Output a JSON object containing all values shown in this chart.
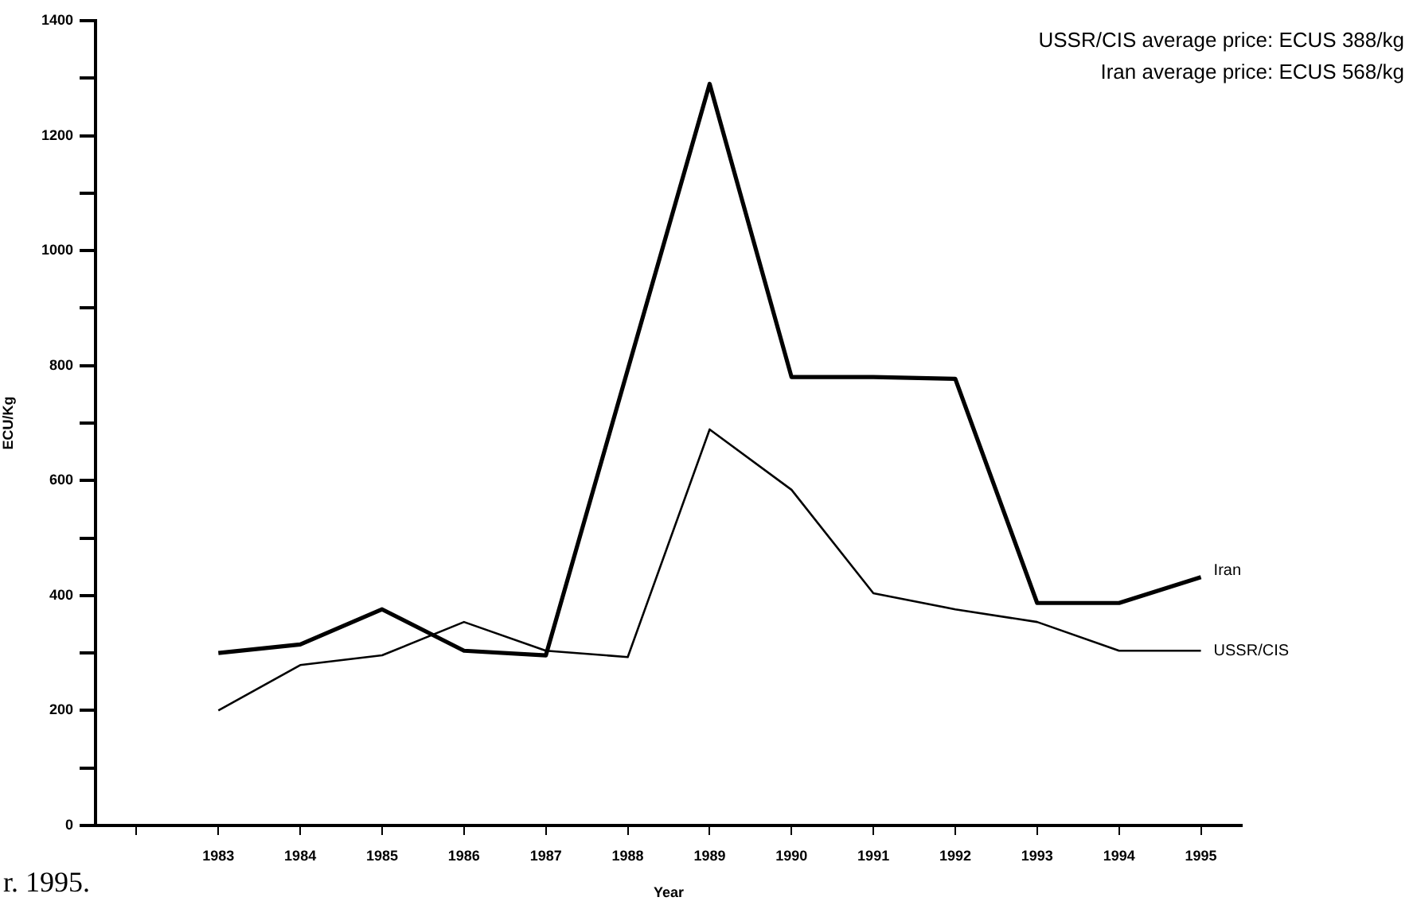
{
  "chart_data": {
    "type": "line",
    "xlabel": "Year",
    "ylabel": "ECU/Kg",
    "annotations": [
      "USSR/CIS average price: ECUS 388/kg",
      "Iran average price: ECUS 568/kg",
      "r. 1995."
    ],
    "series": [
      {
        "name": "Iran",
        "color": "#000000",
        "x": [
          1983,
          1984,
          1985,
          1986,
          1987,
          1989,
          1990,
          1991,
          1992,
          1993,
          1994,
          1995
        ],
        "values": [
          300,
          315,
          376,
          304,
          296,
          1290,
          780,
          780,
          777,
          387,
          387,
          432
        ]
      },
      {
        "name": "USSR/CIS",
        "color": "#000000",
        "x": [
          1983,
          1984,
          1985,
          1986,
          1987,
          1988,
          1989,
          1990,
          1991,
          1992,
          1993,
          1994,
          1995
        ],
        "values": [
          200,
          279,
          296,
          354,
          304,
          293,
          689,
          584,
          404,
          376,
          354,
          304,
          304
        ]
      }
    ],
    "xlim": [
      1981.5,
      1995.5
    ],
    "xticks": [
      {
        "value": 1982,
        "label": null
      },
      1983,
      1984,
      1985,
      1986,
      1987,
      1988,
      1989,
      1990,
      1991,
      1992,
      1993,
      1994,
      1995
    ],
    "ylim": [
      0,
      1400
    ],
    "yticks": [
      0,
      {
        "value": 100,
        "label": null
      },
      200,
      {
        "value": 300,
        "label": null
      },
      400,
      {
        "value": 500,
        "label": null
      },
      600,
      {
        "value": 700,
        "label": null
      },
      800,
      {
        "value": 900,
        "label": null
      },
      1000,
      {
        "value": 1100,
        "label": null
      },
      1200,
      {
        "value": 1300,
        "label": null
      },
      1400
    ],
    "grid": false,
    "legend": false,
    "marker": "none",
    "line_style": "solid"
  }
}
